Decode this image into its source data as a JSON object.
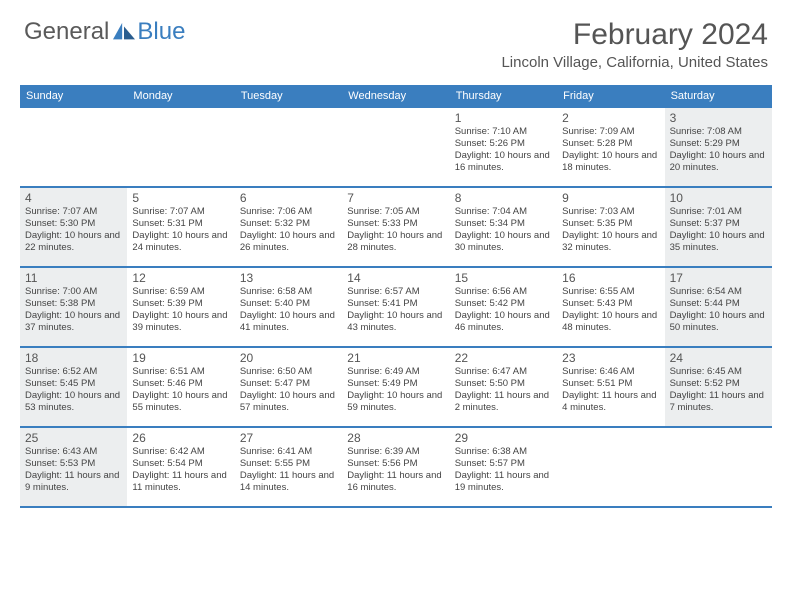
{
  "logo": {
    "text1": "General",
    "text2": "Blue"
  },
  "title": "February 2024",
  "location": "Lincoln Village, California, United States",
  "colors": {
    "accent": "#3a7ebf",
    "shaded": "#eceeef",
    "text_gray": "#555555",
    "background": "#ffffff"
  },
  "day_headers": [
    "Sunday",
    "Monday",
    "Tuesday",
    "Wednesday",
    "Thursday",
    "Friday",
    "Saturday"
  ],
  "weeks": [
    [
      {
        "blank": true
      },
      {
        "blank": true
      },
      {
        "blank": true
      },
      {
        "blank": true
      },
      {
        "day": 1,
        "sunrise": "7:10 AM",
        "sunset": "5:26 PM",
        "daylight": "10 hours and 16 minutes."
      },
      {
        "day": 2,
        "sunrise": "7:09 AM",
        "sunset": "5:28 PM",
        "daylight": "10 hours and 18 minutes."
      },
      {
        "day": 3,
        "sunrise": "7:08 AM",
        "sunset": "5:29 PM",
        "daylight": "10 hours and 20 minutes.",
        "shaded": true
      }
    ],
    [
      {
        "day": 4,
        "sunrise": "7:07 AM",
        "sunset": "5:30 PM",
        "daylight": "10 hours and 22 minutes.",
        "shaded": true
      },
      {
        "day": 5,
        "sunrise": "7:07 AM",
        "sunset": "5:31 PM",
        "daylight": "10 hours and 24 minutes."
      },
      {
        "day": 6,
        "sunrise": "7:06 AM",
        "sunset": "5:32 PM",
        "daylight": "10 hours and 26 minutes."
      },
      {
        "day": 7,
        "sunrise": "7:05 AM",
        "sunset": "5:33 PM",
        "daylight": "10 hours and 28 minutes."
      },
      {
        "day": 8,
        "sunrise": "7:04 AM",
        "sunset": "5:34 PM",
        "daylight": "10 hours and 30 minutes."
      },
      {
        "day": 9,
        "sunrise": "7:03 AM",
        "sunset": "5:35 PM",
        "daylight": "10 hours and 32 minutes."
      },
      {
        "day": 10,
        "sunrise": "7:01 AM",
        "sunset": "5:37 PM",
        "daylight": "10 hours and 35 minutes.",
        "shaded": true
      }
    ],
    [
      {
        "day": 11,
        "sunrise": "7:00 AM",
        "sunset": "5:38 PM",
        "daylight": "10 hours and 37 minutes.",
        "shaded": true
      },
      {
        "day": 12,
        "sunrise": "6:59 AM",
        "sunset": "5:39 PM",
        "daylight": "10 hours and 39 minutes."
      },
      {
        "day": 13,
        "sunrise": "6:58 AM",
        "sunset": "5:40 PM",
        "daylight": "10 hours and 41 minutes."
      },
      {
        "day": 14,
        "sunrise": "6:57 AM",
        "sunset": "5:41 PM",
        "daylight": "10 hours and 43 minutes."
      },
      {
        "day": 15,
        "sunrise": "6:56 AM",
        "sunset": "5:42 PM",
        "daylight": "10 hours and 46 minutes."
      },
      {
        "day": 16,
        "sunrise": "6:55 AM",
        "sunset": "5:43 PM",
        "daylight": "10 hours and 48 minutes."
      },
      {
        "day": 17,
        "sunrise": "6:54 AM",
        "sunset": "5:44 PM",
        "daylight": "10 hours and 50 minutes.",
        "shaded": true
      }
    ],
    [
      {
        "day": 18,
        "sunrise": "6:52 AM",
        "sunset": "5:45 PM",
        "daylight": "10 hours and 53 minutes.",
        "shaded": true
      },
      {
        "day": 19,
        "sunrise": "6:51 AM",
        "sunset": "5:46 PM",
        "daylight": "10 hours and 55 minutes."
      },
      {
        "day": 20,
        "sunrise": "6:50 AM",
        "sunset": "5:47 PM",
        "daylight": "10 hours and 57 minutes."
      },
      {
        "day": 21,
        "sunrise": "6:49 AM",
        "sunset": "5:49 PM",
        "daylight": "10 hours and 59 minutes."
      },
      {
        "day": 22,
        "sunrise": "6:47 AM",
        "sunset": "5:50 PM",
        "daylight": "11 hours and 2 minutes."
      },
      {
        "day": 23,
        "sunrise": "6:46 AM",
        "sunset": "5:51 PM",
        "daylight": "11 hours and 4 minutes."
      },
      {
        "day": 24,
        "sunrise": "6:45 AM",
        "sunset": "5:52 PM",
        "daylight": "11 hours and 7 minutes.",
        "shaded": true
      }
    ],
    [
      {
        "day": 25,
        "sunrise": "6:43 AM",
        "sunset": "5:53 PM",
        "daylight": "11 hours and 9 minutes.",
        "shaded": true
      },
      {
        "day": 26,
        "sunrise": "6:42 AM",
        "sunset": "5:54 PM",
        "daylight": "11 hours and 11 minutes."
      },
      {
        "day": 27,
        "sunrise": "6:41 AM",
        "sunset": "5:55 PM",
        "daylight": "11 hours and 14 minutes."
      },
      {
        "day": 28,
        "sunrise": "6:39 AM",
        "sunset": "5:56 PM",
        "daylight": "11 hours and 16 minutes."
      },
      {
        "day": 29,
        "sunrise": "6:38 AM",
        "sunset": "5:57 PM",
        "daylight": "11 hours and 19 minutes."
      },
      {
        "blank": true
      },
      {
        "blank": true
      }
    ]
  ],
  "labels": {
    "sunrise": "Sunrise:",
    "sunset": "Sunset:",
    "daylight": "Daylight:"
  }
}
